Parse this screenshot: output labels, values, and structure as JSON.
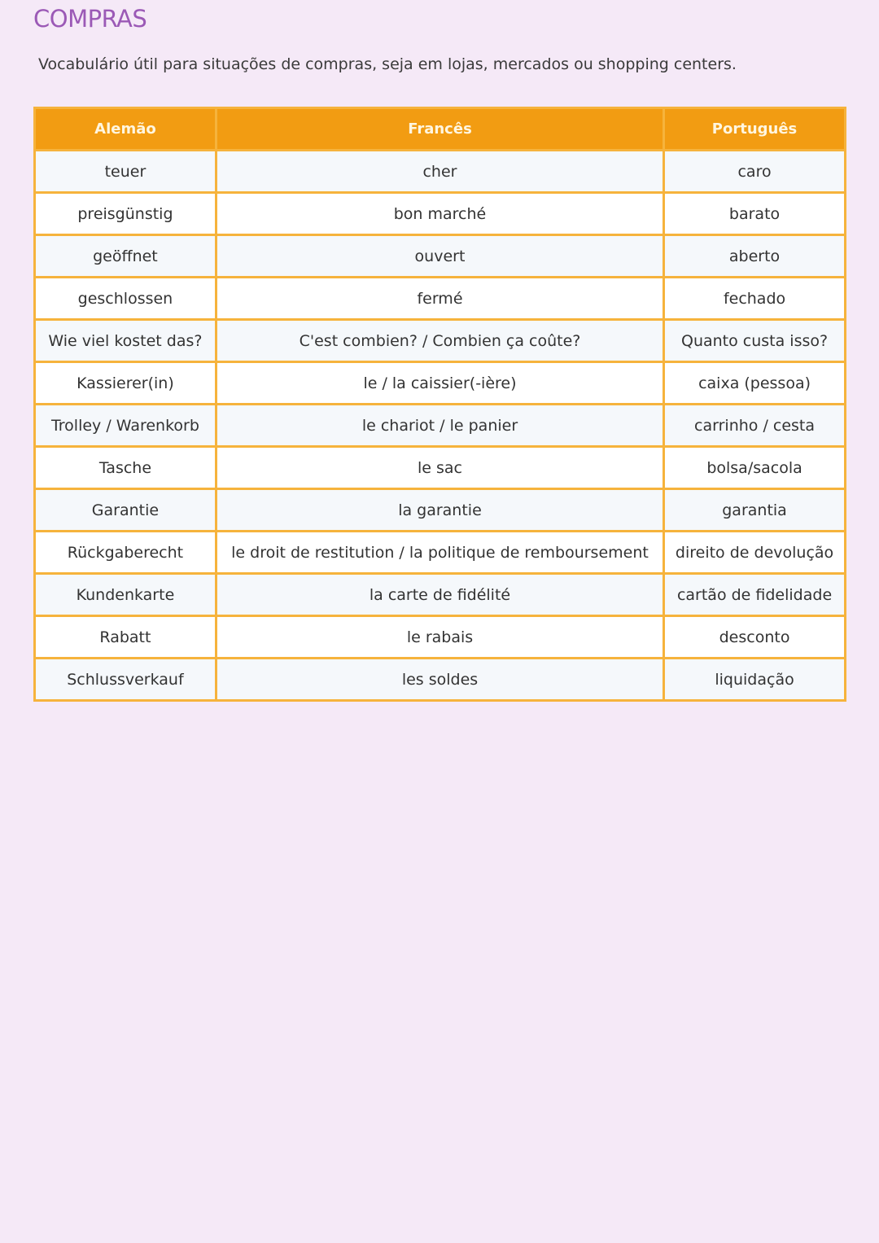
{
  "title": "COMPRAS",
  "subtitle": "Vocabulário útil para situações de compras, seja em lojas, mercados ou shopping centers.",
  "colors": {
    "title": "#9b59b6",
    "header_bg": "#f29c12",
    "border": "#f6b33c",
    "background": "#f5e9f7"
  },
  "table": {
    "headers": [
      "Alemão",
      "Francês",
      "Português"
    ],
    "rows": [
      [
        "teuer",
        "cher",
        "caro"
      ],
      [
        "preisgünstig",
        "bon marché",
        "barato"
      ],
      [
        "geöffnet",
        "ouvert",
        "aberto"
      ],
      [
        "geschlossen",
        "fermé",
        "fechado"
      ],
      [
        "Wie viel kostet das?",
        "C'est combien? / Combien ça coûte?",
        "Quanto custa isso?"
      ],
      [
        "Kassierer(in)",
        "le / la caissier(-ière)",
        "caixa (pessoa)"
      ],
      [
        "Trolley / Warenkorb",
        "le chariot / le panier",
        "carrinho / cesta"
      ],
      [
        "Tasche",
        "le sac",
        "bolsa/sacola"
      ],
      [
        "Garantie",
        "la garantie",
        "garantia"
      ],
      [
        "Rückgaberecht",
        "le droit de restitution / la politique de remboursement",
        "direito de devolução"
      ],
      [
        "Kundenkarte",
        "la carte de fidélité",
        "cartão de fidelidade"
      ],
      [
        "Rabatt",
        "le rabais",
        "desconto"
      ],
      [
        "Schlussverkauf",
        "les soldes",
        "liquidação"
      ]
    ]
  }
}
